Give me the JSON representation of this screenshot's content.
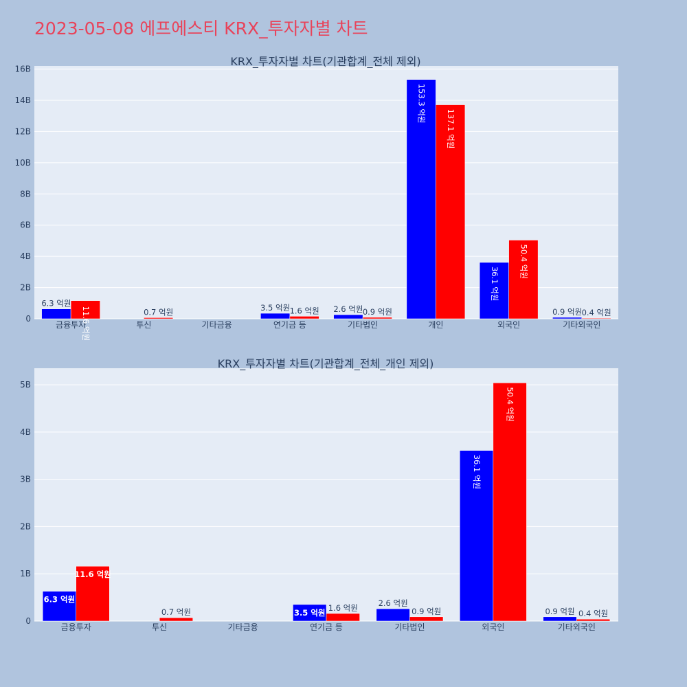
{
  "page_title": "2023-05-08 에프에스티 KRX_투자자별 차트",
  "colors": {
    "buy": "#0000ff",
    "sell": "#ff0000",
    "plot_bg": "#e5ecf6",
    "page_bg": "#b0c4de",
    "title": "#e8435a"
  },
  "chart_data": [
    {
      "type": "bar",
      "title": "KRX_투자자별 차트(기관합계_전체 제외)",
      "categories": [
        "금융투자",
        "투신",
        "기타금융",
        "연기금 등",
        "기타법인",
        "개인",
        "외국인",
        "기타외국인"
      ],
      "series": [
        {
          "values": [
            0.63,
            0,
            0,
            0.35,
            0.26,
            15.33,
            3.61,
            0.09
          ],
          "labels": [
            "6.3 억원",
            "",
            "",
            "3.5 억원",
            "2.6 억원",
            "153.3 억원",
            "36.1 억원",
            "0.9 억원"
          ]
        },
        {
          "values": [
            1.16,
            0.07,
            0,
            0.16,
            0.09,
            13.71,
            5.04,
            0.04
          ],
          "labels": [
            "11.6 억원",
            "0.7 억원",
            "",
            "1.6 억원",
            "0.9 억원",
            "137.1 억원",
            "50.4 억원",
            "0.4 억원"
          ]
        }
      ],
      "ylim": [
        0,
        16.2
      ],
      "yticks": [
        0,
        2,
        4,
        6,
        8,
        10,
        12,
        14,
        16
      ],
      "ytick_labels": [
        "0",
        "2B",
        "4B",
        "6B",
        "8B",
        "10B",
        "12B",
        "14B",
        "16B"
      ],
      "grid": true
    },
    {
      "type": "bar",
      "title": "KRX_투자자별 차트(기관합계_전체_개인 제외)",
      "categories": [
        "금융투자",
        "투신",
        "기타금융",
        "연기금 등",
        "기타법인",
        "외국인",
        "기타외국인"
      ],
      "series": [
        {
          "values": [
            0.63,
            0,
            0,
            0.35,
            0.26,
            3.61,
            0.09
          ],
          "labels": [
            "6.3 억원",
            "",
            "",
            "3.5 억원",
            "2.6 억원",
            "36.1 억원",
            "0.9 억원"
          ]
        },
        {
          "values": [
            1.16,
            0.07,
            0,
            0.16,
            0.09,
            5.04,
            0.04
          ],
          "labels": [
            "11.6 억원",
            "0.7 억원",
            "",
            "1.6 억원",
            "0.9 억원",
            "50.4 억원",
            "0.4 억원"
          ]
        }
      ],
      "ylim": [
        0,
        5.35
      ],
      "yticks": [
        0,
        1,
        2,
        3,
        4,
        5
      ],
      "ytick_labels": [
        "0",
        "1B",
        "2B",
        "3B",
        "4B",
        "5B"
      ],
      "grid": true
    }
  ]
}
